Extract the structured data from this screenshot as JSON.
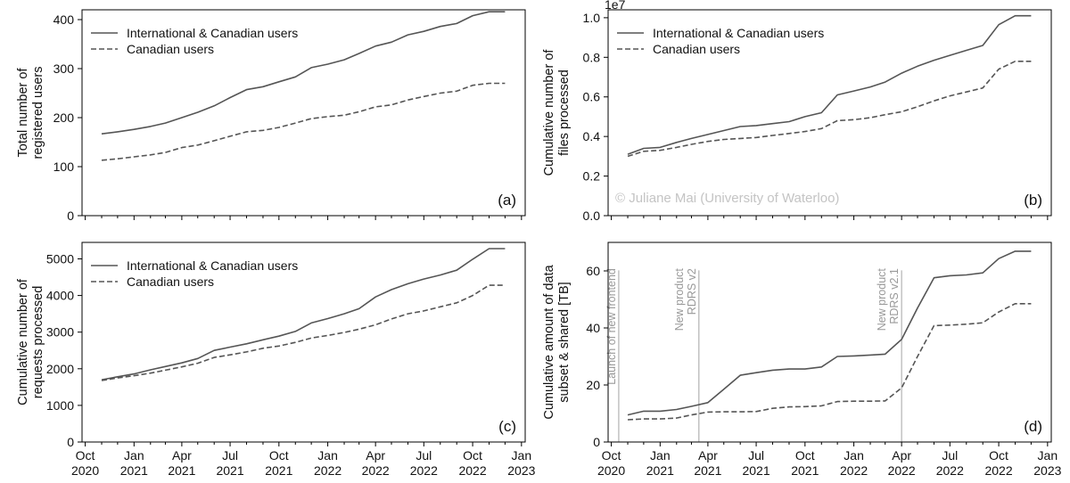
{
  "chart_data": [
    {
      "panel_label": "(a)",
      "type": "line",
      "ylabel": "Total number of\nregistered users",
      "ylim": [
        0,
        420
      ],
      "yticks": [
        0,
        100,
        200,
        300,
        400
      ],
      "xlim": [
        "2020-09-25",
        "2023-01-08"
      ],
      "grid": false,
      "legend": "top-left",
      "series": [
        {
          "name": "International & Canadian users",
          "style": "solid",
          "x": [
            "2020-11-01",
            "2020-12-01",
            "2021-01-01",
            "2021-02-01",
            "2021-03-01",
            "2021-04-01",
            "2021-05-01",
            "2021-06-01",
            "2021-07-01",
            "2021-08-01",
            "2021-09-01",
            "2021-10-01",
            "2021-11-01",
            "2021-12-01",
            "2022-01-01",
            "2022-02-01",
            "2022-03-01",
            "2022-04-01",
            "2022-05-01",
            "2022-06-01",
            "2022-07-01",
            "2022-08-01",
            "2022-09-01",
            "2022-10-01",
            "2022-11-01",
            "2022-12-01"
          ],
          "y": [
            167,
            171,
            176,
            182,
            189,
            200,
            211,
            224,
            241,
            257,
            263,
            273,
            283,
            302,
            309,
            318,
            331,
            346,
            354,
            369,
            376,
            386,
            392,
            408,
            416,
            416
          ]
        },
        {
          "name": "Canadian users",
          "style": "dashed",
          "x": [
            "2020-11-01",
            "2020-12-01",
            "2021-01-01",
            "2021-02-01",
            "2021-03-01",
            "2021-04-01",
            "2021-05-01",
            "2021-06-01",
            "2021-07-01",
            "2021-08-01",
            "2021-09-01",
            "2021-10-01",
            "2021-11-01",
            "2021-12-01",
            "2022-01-01",
            "2022-02-01",
            "2022-03-01",
            "2022-04-01",
            "2022-05-01",
            "2022-06-01",
            "2022-07-01",
            "2022-08-01",
            "2022-09-01",
            "2022-10-01",
            "2022-11-01",
            "2022-12-01"
          ],
          "y": [
            113,
            116,
            120,
            124,
            129,
            139,
            144,
            153,
            162,
            171,
            174,
            180,
            189,
            198,
            202,
            205,
            212,
            222,
            226,
            236,
            243,
            250,
            254,
            266,
            270,
            270
          ]
        }
      ]
    },
    {
      "panel_label": "(b)",
      "type": "line",
      "ylabel": "Cumulative number of\nfiles processed",
      "offset_text": "1e7",
      "ylim": [
        0,
        1.04
      ],
      "yticks": [
        0.0,
        0.2,
        0.4,
        0.6,
        0.8,
        1.0
      ],
      "ytick_format": "fixed1",
      "xlim": [
        "2020-09-25",
        "2023-01-08"
      ],
      "grid": false,
      "legend": "top-left",
      "watermark": "© Juliane Mai (University of Waterloo)",
      "series": [
        {
          "name": "International & Canadian users",
          "style": "solid",
          "x": [
            "2020-11-01",
            "2020-12-01",
            "2021-01-01",
            "2021-02-01",
            "2021-03-01",
            "2021-04-01",
            "2021-05-01",
            "2021-06-01",
            "2021-07-01",
            "2021-08-01",
            "2021-09-01",
            "2021-10-01",
            "2021-11-01",
            "2021-12-01",
            "2022-01-01",
            "2022-02-01",
            "2022-03-01",
            "2022-04-01",
            "2022-05-01",
            "2022-06-01",
            "2022-07-01",
            "2022-08-01",
            "2022-09-01",
            "2022-10-01",
            "2022-11-01",
            "2022-12-01"
          ],
          "y": [
            0.31,
            0.34,
            0.345,
            0.37,
            0.39,
            0.41,
            0.43,
            0.45,
            0.455,
            0.465,
            0.475,
            0.5,
            0.52,
            0.61,
            0.63,
            0.65,
            0.675,
            0.72,
            0.755,
            0.785,
            0.81,
            0.835,
            0.86,
            0.965,
            1.01,
            1.01
          ]
        },
        {
          "name": "Canadian users",
          "style": "dashed",
          "x": [
            "2020-11-01",
            "2020-12-01",
            "2021-01-01",
            "2021-02-01",
            "2021-03-01",
            "2021-04-01",
            "2021-05-01",
            "2021-06-01",
            "2021-07-01",
            "2021-08-01",
            "2021-09-01",
            "2021-10-01",
            "2021-11-01",
            "2021-12-01",
            "2022-01-01",
            "2022-02-01",
            "2022-03-01",
            "2022-04-01",
            "2022-05-01",
            "2022-06-01",
            "2022-07-01",
            "2022-08-01",
            "2022-09-01",
            "2022-10-01",
            "2022-11-01",
            "2022-12-01"
          ],
          "y": [
            0.3,
            0.325,
            0.33,
            0.345,
            0.36,
            0.375,
            0.385,
            0.39,
            0.395,
            0.405,
            0.415,
            0.425,
            0.44,
            0.48,
            0.485,
            0.495,
            0.51,
            0.525,
            0.55,
            0.58,
            0.605,
            0.625,
            0.645,
            0.74,
            0.78,
            0.78
          ]
        }
      ]
    },
    {
      "panel_label": "(c)",
      "type": "line",
      "ylabel": "Cumulative number of\nrequests processed",
      "ylim": [
        0,
        5450
      ],
      "yticks": [
        0,
        1000,
        2000,
        3000,
        4000,
        5000
      ],
      "xlim": [
        "2020-09-25",
        "2023-01-08"
      ],
      "xtick_labels": [
        "Oct\n2020",
        "Jan\n2021",
        "Apr\n2021",
        "Jul\n2021",
        "Oct\n2021",
        "Jan\n2022",
        "Apr\n2022",
        "Jul\n2022",
        "Oct\n2022",
        "Jan\n2023"
      ],
      "xticks": [
        "2020-10-01",
        "2021-01-01",
        "2021-04-01",
        "2021-07-01",
        "2021-10-01",
        "2022-01-01",
        "2022-04-01",
        "2022-07-01",
        "2022-10-01",
        "2023-01-01"
      ],
      "grid": false,
      "legend": "top-left",
      "series": [
        {
          "name": "International & Canadian users",
          "style": "solid",
          "x": [
            "2020-11-01",
            "2020-12-01",
            "2021-01-01",
            "2021-02-01",
            "2021-03-01",
            "2021-04-01",
            "2021-05-01",
            "2021-06-01",
            "2021-07-01",
            "2021-08-01",
            "2021-09-01",
            "2021-10-01",
            "2021-11-01",
            "2021-12-01",
            "2022-01-01",
            "2022-02-01",
            "2022-03-01",
            "2022-04-01",
            "2022-05-01",
            "2022-06-01",
            "2022-07-01",
            "2022-08-01",
            "2022-09-01",
            "2022-10-01",
            "2022-11-01",
            "2022-12-01"
          ],
          "y": [
            1700,
            1780,
            1860,
            1970,
            2060,
            2160,
            2280,
            2500,
            2590,
            2680,
            2790,
            2890,
            3020,
            3250,
            3370,
            3500,
            3640,
            3960,
            4160,
            4320,
            4450,
            4560,
            4690,
            4990,
            5280,
            5280
          ]
        },
        {
          "name": "Canadian users",
          "style": "dashed",
          "x": [
            "2020-11-01",
            "2020-12-01",
            "2021-01-01",
            "2021-02-01",
            "2021-03-01",
            "2021-04-01",
            "2021-05-01",
            "2021-06-01",
            "2021-07-01",
            "2021-08-01",
            "2021-09-01",
            "2021-10-01",
            "2021-11-01",
            "2021-12-01",
            "2022-01-01",
            "2022-02-01",
            "2022-03-01",
            "2022-04-01",
            "2022-05-01",
            "2022-06-01",
            "2022-07-01",
            "2022-08-01",
            "2022-09-01",
            "2022-10-01",
            "2022-11-01",
            "2022-12-01"
          ],
          "y": [
            1680,
            1750,
            1810,
            1880,
            1960,
            2050,
            2150,
            2310,
            2380,
            2460,
            2560,
            2620,
            2720,
            2840,
            2910,
            2990,
            3080,
            3200,
            3360,
            3500,
            3580,
            3690,
            3800,
            4000,
            4280,
            4280
          ]
        }
      ]
    },
    {
      "panel_label": "(d)",
      "type": "line",
      "ylabel": "Cumulative amount of data\nsubset & shared [TB]",
      "ylim": [
        0,
        70
      ],
      "yticks": [
        0,
        20,
        40,
        60
      ],
      "xlim": [
        "2020-09-25",
        "2023-01-08"
      ],
      "xtick_labels": [
        "Oct\n2020",
        "Jan\n2021",
        "Apr\n2021",
        "Jul\n2021",
        "Oct\n2021",
        "Jan\n2022",
        "Apr\n2022",
        "Jul\n2022",
        "Oct\n2022",
        "Jan\n2023"
      ],
      "xticks": [
        "2020-10-01",
        "2021-01-01",
        "2021-04-01",
        "2021-07-01",
        "2021-10-01",
        "2022-01-01",
        "2022-04-01",
        "2022-07-01",
        "2022-10-01",
        "2023-01-01"
      ],
      "grid": false,
      "legend": "none",
      "annotations": [
        {
          "x": "2020-10-15",
          "label": "Launch of new frontend"
        },
        {
          "x": "2021-03-15",
          "label": "New product\nRDRS v2"
        },
        {
          "x": "2022-04-01",
          "label": "New product\nRDRS v2.1"
        }
      ],
      "series": [
        {
          "name": "International & Canadian users",
          "style": "solid",
          "x": [
            "2020-11-01",
            "2020-12-01",
            "2021-01-01",
            "2021-02-01",
            "2021-03-01",
            "2021-04-01",
            "2021-05-01",
            "2021-06-01",
            "2021-07-01",
            "2021-08-01",
            "2021-09-01",
            "2021-10-01",
            "2021-11-01",
            "2021-12-01",
            "2022-01-01",
            "2022-02-01",
            "2022-03-01",
            "2022-04-01",
            "2022-05-01",
            "2022-06-01",
            "2022-07-01",
            "2022-08-01",
            "2022-09-01",
            "2022-10-01",
            "2022-11-01",
            "2022-12-01"
          ],
          "y": [
            9.5,
            10.8,
            10.8,
            11.4,
            12.5,
            13.8,
            18.5,
            23.4,
            24.3,
            25.2,
            25.6,
            25.6,
            26.3,
            30.0,
            30.2,
            30.5,
            30.8,
            36.0,
            47.0,
            57.6,
            58.3,
            58.6,
            59.3,
            64.3,
            66.9,
            66.9
          ]
        },
        {
          "name": "Canadian users",
          "style": "dashed",
          "x": [
            "2020-11-01",
            "2020-12-01",
            "2021-01-01",
            "2021-02-01",
            "2021-03-01",
            "2021-04-01",
            "2021-05-01",
            "2021-06-01",
            "2021-07-01",
            "2021-08-01",
            "2021-09-01",
            "2021-10-01",
            "2021-11-01",
            "2021-12-01",
            "2022-01-01",
            "2022-02-01",
            "2022-03-01",
            "2022-04-01",
            "2022-05-01",
            "2022-06-01",
            "2022-07-01",
            "2022-08-01",
            "2022-09-01",
            "2022-10-01",
            "2022-11-01",
            "2022-12-01"
          ],
          "y": [
            7.8,
            8.1,
            8.1,
            8.4,
            9.5,
            10.5,
            10.6,
            10.6,
            10.7,
            11.8,
            12.3,
            12.4,
            12.7,
            14.2,
            14.3,
            14.3,
            14.4,
            19.0,
            30.0,
            40.8,
            41.0,
            41.3,
            41.8,
            45.6,
            48.5,
            48.5
          ]
        }
      ]
    }
  ]
}
